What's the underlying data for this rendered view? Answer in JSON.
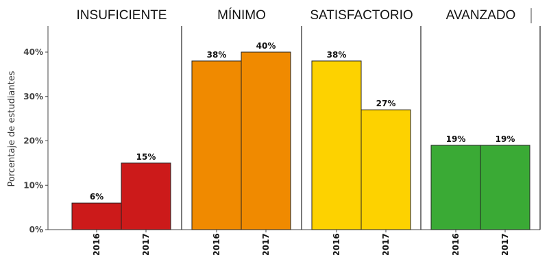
{
  "chart_data": {
    "type": "bar",
    "ylabel": "Porcentaje de estudiantes",
    "ylim": [
      0,
      46
    ],
    "yticks": [
      0,
      10,
      20,
      30,
      40
    ],
    "ytick_labels": [
      "0%",
      "10%",
      "20%",
      "30%",
      "40%"
    ],
    "categories": [
      "2016",
      "2017"
    ],
    "grid": false,
    "legend": "none",
    "panels": [
      {
        "title": "INSUFICIENTE",
        "color": "#cc1a1a",
        "values": [
          6,
          15
        ],
        "labels": [
          "6%",
          "15%"
        ]
      },
      {
        "title": "MÍNIMO",
        "color": "#f08a00",
        "values": [
          38,
          40
        ],
        "labels": [
          "38%",
          "40%"
        ]
      },
      {
        "title": "SATISFACTORIO",
        "color": "#fdd200",
        "values": [
          38,
          27
        ],
        "labels": [
          "38%",
          "27%"
        ]
      },
      {
        "title": "AVANZADO",
        "color": "#3aaa35",
        "values": [
          19,
          19
        ],
        "labels": [
          "19%",
          "19%"
        ]
      }
    ]
  }
}
